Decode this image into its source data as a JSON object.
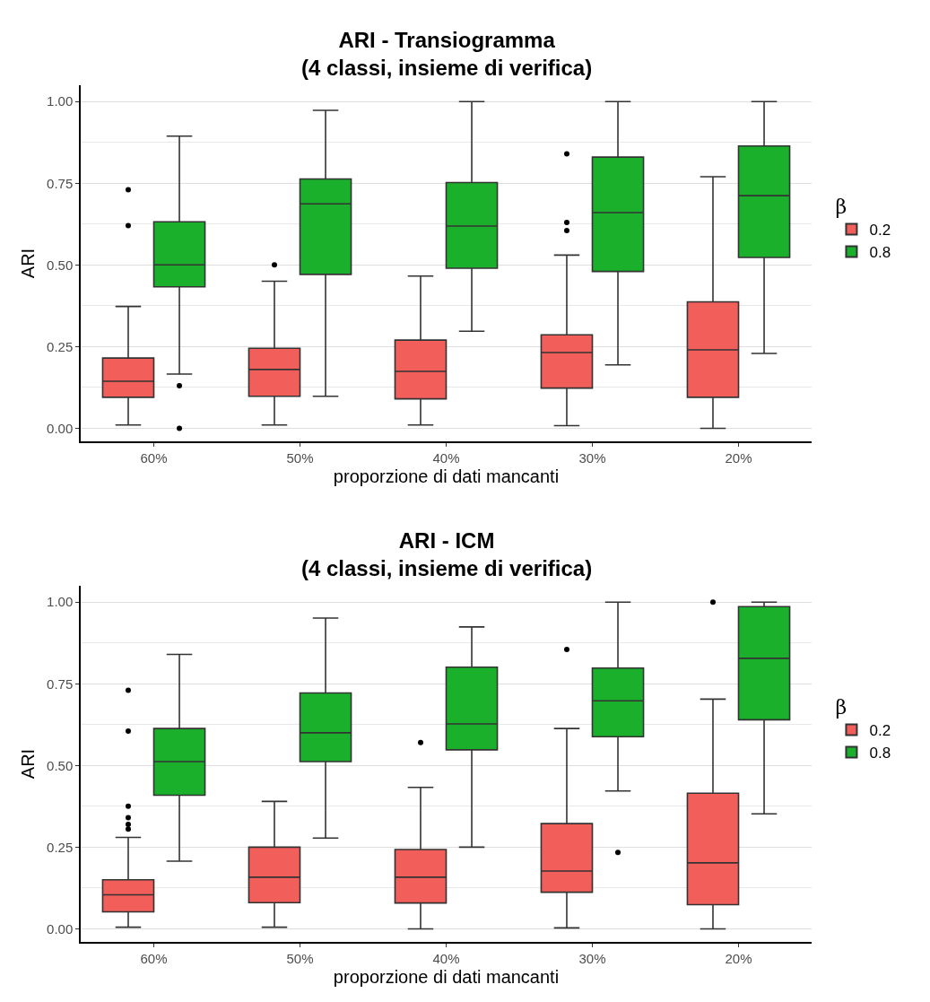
{
  "chart_data": [
    {
      "type": "box",
      "title": "ARI - Transiogramma\n(4 classi, insieme di verifica)",
      "xlabel": "proporzione di dati mancanti",
      "ylabel": "ARI",
      "legend_title": "β",
      "legend": "right",
      "grid": "y",
      "categories": [
        "60%",
        "50%",
        "40%",
        "30%",
        "20%"
      ],
      "ylim": [
        -0.04,
        1.05
      ],
      "yticks": [
        {
          "value": 0,
          "label": "0.00"
        },
        {
          "value": 0.125,
          "label": null
        },
        {
          "value": 0.25,
          "label": "0.25"
        },
        {
          "value": 0.375,
          "label": null
        },
        {
          "value": 0.5,
          "label": "0.50"
        },
        {
          "value": 0.625,
          "label": null
        },
        {
          "value": 0.75,
          "label": "0.75"
        },
        {
          "value": 0.875,
          "label": null
        },
        {
          "value": 1,
          "label": "1.00"
        }
      ],
      "series": [
        {
          "name": "0.2",
          "color": "#f25e5a",
          "boxes": [
            {
              "low": 0.01,
              "q1": 0.095,
              "median": 0.144,
              "q3": 0.215,
              "high": 0.373,
              "outliers": [
                0.73,
                0.62
              ]
            },
            {
              "low": 0.01,
              "q1": 0.098,
              "median": 0.18,
              "q3": 0.245,
              "high": 0.45,
              "outliers": [
                0.5
              ]
            },
            {
              "low": 0.01,
              "q1": 0.09,
              "median": 0.174,
              "q3": 0.27,
              "high": 0.466
            },
            {
              "low": 0.008,
              "q1": 0.123,
              "median": 0.232,
              "q3": 0.286,
              "high": 0.53,
              "outliers": [
                0.84,
                0.63,
                0.605
              ]
            },
            {
              "low": 0.0,
              "q1": 0.095,
              "median": 0.24,
              "q3": 0.387,
              "high": 0.77
            }
          ]
        },
        {
          "name": "0.8",
          "color": "#1bb02c",
          "boxes": [
            {
              "low": 0.166,
              "q1": 0.433,
              "median": 0.5,
              "q3": 0.632,
              "high": 0.894,
              "outliers": [
                0.13,
                0.0
              ]
            },
            {
              "low": 0.098,
              "q1": 0.471,
              "median": 0.687,
              "q3": 0.763,
              "high": 0.973
            },
            {
              "low": 0.297,
              "q1": 0.49,
              "median": 0.619,
              "q3": 0.752,
              "high": 1.0
            },
            {
              "low": 0.194,
              "q1": 0.48,
              "median": 0.66,
              "q3": 0.83,
              "high": 1.0
            },
            {
              "low": 0.229,
              "q1": 0.523,
              "median": 0.712,
              "q3": 0.864,
              "high": 1.0
            }
          ]
        }
      ]
    },
    {
      "type": "box",
      "title": "ARI - ICM\n(4 classi, insieme di verifica)",
      "xlabel": "proporzione di dati mancanti",
      "ylabel": "ARI",
      "legend_title": "β",
      "legend": "right",
      "grid": "y",
      "categories": [
        "60%",
        "50%",
        "40%",
        "30%",
        "20%"
      ],
      "ylim": [
        -0.04,
        1.05
      ],
      "yticks": [
        {
          "value": 0,
          "label": "0.00"
        },
        {
          "value": 0.125,
          "label": null
        },
        {
          "value": 0.25,
          "label": "0.25"
        },
        {
          "value": 0.375,
          "label": null
        },
        {
          "value": 0.5,
          "label": "0.50"
        },
        {
          "value": 0.625,
          "label": null
        },
        {
          "value": 0.75,
          "label": "0.75"
        },
        {
          "value": 0.875,
          "label": null
        },
        {
          "value": 1,
          "label": "1.00"
        }
      ],
      "series": [
        {
          "name": "0.2",
          "color": "#f25e5a",
          "boxes": [
            {
              "low": 0.005,
              "q1": 0.052,
              "median": 0.104,
              "q3": 0.15,
              "high": 0.28,
              "outliers": [
                0.73,
                0.605,
                0.375,
                0.34,
                0.32,
                0.305
              ]
            },
            {
              "low": 0.005,
              "q1": 0.08,
              "median": 0.158,
              "q3": 0.25,
              "high": 0.39
            },
            {
              "low": 0.0,
              "q1": 0.079,
              "median": 0.158,
              "q3": 0.243,
              "high": 0.433,
              "outliers": [
                0.57
              ]
            },
            {
              "low": 0.003,
              "q1": 0.112,
              "median": 0.177,
              "q3": 0.322,
              "high": 0.613,
              "outliers": [
                0.855
              ]
            },
            {
              "low": 0.0,
              "q1": 0.074,
              "median": 0.202,
              "q3": 0.415,
              "high": 0.703,
              "outliers": [
                1.0
              ]
            }
          ]
        },
        {
          "name": "0.8",
          "color": "#1bb02c",
          "boxes": [
            {
              "low": 0.207,
              "q1": 0.409,
              "median": 0.512,
              "q3": 0.613,
              "high": 0.84
            },
            {
              "low": 0.278,
              "q1": 0.512,
              "median": 0.6,
              "q3": 0.722,
              "high": 0.951
            },
            {
              "low": 0.25,
              "q1": 0.548,
              "median": 0.627,
              "q3": 0.801,
              "high": 0.924
            },
            {
              "low": 0.422,
              "q1": 0.588,
              "median": 0.698,
              "q3": 0.798,
              "high": 1.0,
              "outliers": [
                0.234
              ]
            },
            {
              "low": 0.352,
              "q1": 0.64,
              "median": 0.828,
              "q3": 0.986,
              "high": 1.0
            }
          ]
        }
      ]
    }
  ]
}
